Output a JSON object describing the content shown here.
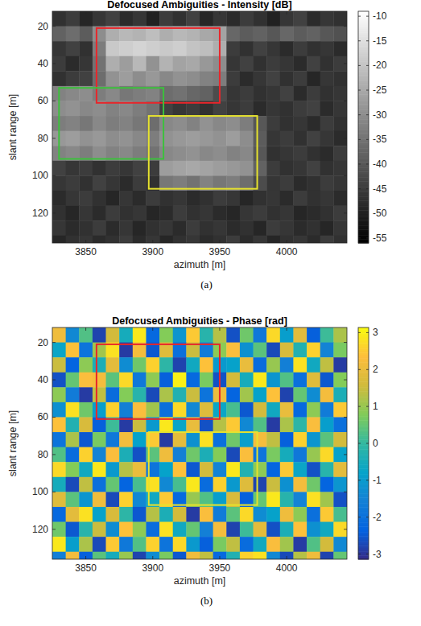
{
  "chart_data": [
    {
      "type": "heatmap",
      "title": "Defocused Ambiguities - Intensity [dB]",
      "caption": "(a)",
      "xlabel": "azimuth [m]",
      "ylabel": "slant range [m]",
      "color": "gray",
      "xlim": [
        3825,
        4045
      ],
      "ylim": [
        12,
        136
      ],
      "xticks": [
        3850,
        3900,
        3950,
        4000
      ],
      "yticks": [
        20,
        40,
        60,
        80,
        100,
        120
      ],
      "x": [
        3830,
        3840,
        3850,
        3860,
        3870,
        3880,
        3890,
        3900,
        3910,
        3920,
        3930,
        3940,
        3950,
        3960,
        3970,
        3980,
        3990,
        4000,
        4010,
        4020,
        4030,
        4040
      ],
      "y": [
        16,
        24,
        32,
        40,
        48,
        56,
        64,
        72,
        80,
        88,
        96,
        104,
        112,
        120,
        128,
        136
      ],
      "cells": [
        [
          -47,
          -45,
          -49,
          -46,
          -44,
          -48,
          -46,
          -50,
          -45,
          -47,
          -44,
          -49,
          -46,
          -48,
          -45,
          -47,
          -50,
          -46,
          -44,
          -48,
          -46,
          -47
        ],
        [
          -38,
          -36,
          -39,
          -30,
          -24,
          -22,
          -23,
          -21,
          -24,
          -22,
          -23,
          -25,
          -26,
          -37,
          -39,
          -38,
          -40,
          -37,
          -39,
          -38,
          -40,
          -41
        ],
        [
          -46,
          -44,
          -47,
          -33,
          -19,
          -18,
          -17,
          -18,
          -19,
          -18,
          -20,
          -21,
          -24,
          -45,
          -47,
          -44,
          -46,
          -48,
          -45,
          -47,
          -46,
          -48
        ],
        [
          -45,
          -48,
          -46,
          -35,
          -24,
          -27,
          -22,
          -29,
          -23,
          -26,
          -25,
          -28,
          -30,
          -46,
          -44,
          -47,
          -45,
          -46,
          -48,
          -44,
          -47,
          -45
        ],
        [
          -47,
          -45,
          -44,
          -36,
          -29,
          -27,
          -30,
          -28,
          -31,
          -29,
          -30,
          -32,
          -33,
          -45,
          -48,
          -46,
          -44,
          -47,
          -45,
          -49,
          -46,
          -47
        ],
        [
          -32,
          -31,
          -30,
          -33,
          -31,
          -34,
          -33,
          -32,
          -36,
          -35,
          -37,
          -38,
          -42,
          -46,
          -45,
          -47,
          -46,
          -44,
          -48,
          -45,
          -47,
          -46
        ],
        [
          -30,
          -29,
          -31,
          -30,
          -32,
          -31,
          -33,
          -35,
          -44,
          -46,
          -45,
          -47,
          -44,
          -46,
          -45,
          -48,
          -46,
          -47,
          -45,
          -44,
          -48,
          -46
        ],
        [
          -33,
          -32,
          -34,
          -31,
          -33,
          -32,
          -34,
          -36,
          -31,
          -30,
          -32,
          -29,
          -31,
          -30,
          -33,
          -40,
          -45,
          -47,
          -46,
          -48,
          -45,
          -47
        ],
        [
          -28,
          -27,
          -29,
          -28,
          -30,
          -29,
          -31,
          -33,
          -29,
          -28,
          -27,
          -28,
          -29,
          -27,
          -30,
          -39,
          -46,
          -45,
          -47,
          -44,
          -46,
          -48
        ],
        [
          -32,
          -31,
          -33,
          -30,
          -32,
          -31,
          -33,
          -35,
          -31,
          -30,
          -29,
          -31,
          -30,
          -32,
          -31,
          -40,
          -47,
          -46,
          -45,
          -47,
          -48,
          -45
        ],
        [
          -44,
          -46,
          -45,
          -47,
          -45,
          -46,
          -44,
          -45,
          -27,
          -26,
          -25,
          -26,
          -27,
          -28,
          -29,
          -38,
          -45,
          -47,
          -46,
          -44,
          -47,
          -46
        ],
        [
          -46,
          -45,
          -47,
          -44,
          -46,
          -48,
          -45,
          -47,
          -34,
          -33,
          -35,
          -32,
          -34,
          -33,
          -36,
          -42,
          -46,
          -45,
          -48,
          -47,
          -45,
          -46
        ],
        [
          -48,
          -46,
          -45,
          -47,
          -49,
          -46,
          -48,
          -45,
          -47,
          -46,
          -48,
          -47,
          -45,
          -46,
          -49,
          -47,
          -46,
          -48,
          -45,
          -47,
          -46,
          -48
        ],
        [
          -47,
          -49,
          -46,
          -48,
          -45,
          -47,
          -46,
          -49,
          -48,
          -45,
          -47,
          -46,
          -48,
          -49,
          -46,
          -45,
          -47,
          -46,
          -49,
          -48,
          -47,
          -45
        ],
        [
          -46,
          -48,
          -47,
          -45,
          -48,
          -46,
          -49,
          -47,
          -46,
          -48,
          -45,
          -47,
          -46,
          -48,
          -47,
          -49,
          -45,
          -46,
          -48,
          -47,
          -49,
          -46
        ],
        [
          -49,
          -47,
          -46,
          -48,
          -47,
          -45,
          -48,
          -46,
          -49,
          -47,
          -46,
          -48,
          -47,
          -45,
          -48,
          -46,
          -49,
          -47,
          -46,
          -48,
          -45,
          -47
        ]
      ],
      "colorbar": {
        "lim": [
          -56,
          -9
        ],
        "ticks": [
          -10,
          -15,
          -20,
          -25,
          -30,
          -35,
          -40,
          -45,
          -50,
          -55
        ]
      },
      "boxes": [
        {
          "color": "#e8262b",
          "x": [
            3858,
            3950
          ],
          "y": [
            21,
            61
          ]
        },
        {
          "color": "#3cc03c",
          "x": [
            3830,
            3908
          ],
          "y": [
            53,
            91
          ]
        },
        {
          "color": "#e6e22e",
          "x": [
            3897,
            3978
          ],
          "y": [
            68,
            107
          ]
        }
      ]
    },
    {
      "type": "heatmap",
      "title": "Defocused Ambiguities - Phase [rad]",
      "caption": "(b)",
      "xlabel": "azimuth [m]",
      "ylabel": "slant range [m]",
      "color": "parula",
      "xlim": [
        3825,
        4045
      ],
      "ylim": [
        12,
        136
      ],
      "xticks": [
        3850,
        3900,
        3950,
        4000
      ],
      "yticks": [
        20,
        40,
        60,
        80,
        100,
        120
      ],
      "x": [
        3830,
        3840,
        3850,
        3860,
        3870,
        3880,
        3890,
        3900,
        3910,
        3920,
        3930,
        3940,
        3950,
        3960,
        3970,
        3980,
        3990,
        4000,
        4010,
        4020,
        4030,
        4040
      ],
      "y": [
        16,
        24,
        32,
        40,
        48,
        56,
        64,
        72,
        80,
        88,
        96,
        104,
        112,
        120,
        128,
        136
      ],
      "cells": [
        [
          2.1,
          -1.4,
          0.3,
          -2.8,
          1.6,
          -0.5,
          2.9,
          -2.2,
          0.8,
          -1.1,
          2.5,
          -0.2,
          1.3,
          -2.6,
          0.6,
          -1.8,
          2.7,
          -0.9,
          1.9,
          -2.4,
          0.1,
          1.2
        ],
        [
          -0.7,
          2.4,
          -1.9,
          1.1,
          2.8,
          -2.9,
          2.2,
          -2.5,
          1.8,
          -2.0,
          1.5,
          -1.7,
          0.9,
          2.3,
          -1.2,
          0.4,
          -2.7,
          1.7,
          -0.3,
          2.6,
          -1.5,
          0.7
        ],
        [
          1.5,
          -2.3,
          0.9,
          -0.4,
          1.9,
          -1.3,
          0.6,
          2.6,
          -0.1,
          -2.8,
          -0.6,
          2.4,
          -1.0,
          -0.8,
          2.0,
          -2.1,
          1.0,
          -1.6,
          2.8,
          -0.6,
          1.4,
          -2.9
        ],
        [
          -2.6,
          0.5,
          2.3,
          2.2,
          0.4,
          2.7,
          -1.8,
          0.9,
          -2.4,
          3.0,
          -2.2,
          0.7,
          -2.6,
          1.6,
          -0.5,
          2.9,
          -1.1,
          0.3,
          -2.0,
          1.8,
          -2.5,
          0.8
        ],
        [
          0.9,
          -1.7,
          -2.9,
          1.4,
          -2.1,
          0.8,
          -0.2,
          -2.7,
          1.2,
          -0.3,
          1.5,
          -1.9,
          2.1,
          -2.3,
          1.1,
          -0.8,
          2.4,
          -2.8,
          0.5,
          -1.3,
          2.2,
          -0.4
        ],
        [
          -1.2,
          2.8,
          0.6,
          -0.9,
          2.6,
          -1.6,
          2.3,
          1.1,
          -2.0,
          2.7,
          -1.4,
          1.8,
          -0.7,
          0.2,
          -2.5,
          1.6,
          -0.6,
          2.0,
          -2.2,
          0.9,
          -1.7,
          2.5
        ],
        [
          2.4,
          -0.3,
          1.7,
          -2.4,
          0.1,
          -2.9,
          1.5,
          -1.0,
          2.9,
          -0.7,
          2.0,
          -2.6,
          1.3,
          2.5,
          -1.4,
          0.3,
          -2.9,
          1.2,
          -0.1,
          2.3,
          -0.9,
          -2.0
        ],
        [
          -1.9,
          1.2,
          -2.5,
          0.7,
          -1.8,
          2.2,
          -0.8,
          2.5,
          -2.9,
          1.9,
          -1.2,
          2.8,
          -2.0,
          0.6,
          -0.9,
          2.2,
          1.4,
          -2.4,
          2.6,
          -1.1,
          0.4,
          1.6
        ],
        [
          0.3,
          -2.1,
          2.6,
          -1.5,
          2.3,
          -0.4,
          -2.6,
          0.4,
          2.1,
          -1.6,
          0.6,
          -0.4,
          0.8,
          -2.7,
          2.3,
          -1.9,
          0.7,
          -0.5,
          -1.8,
          1.0,
          2.7,
          -0.8
        ],
        [
          2.7,
          0.8,
          -0.6,
          2.9,
          -1.0,
          1.3,
          2.0,
          -1.9,
          -0.8,
          2.4,
          -2.5,
          1.6,
          -1.5,
          2.9,
          -0.3,
          0.9,
          -2.3,
          2.5,
          -0.7,
          -2.6,
          -0.2,
          1.9
        ],
        [
          -0.5,
          -2.7,
          1.4,
          -2.0,
          0.5,
          -2.3,
          0.2,
          2.8,
          -1.4,
          0.2,
          2.9,
          -2.1,
          2.6,
          -1.0,
          1.8,
          -2.8,
          1.5,
          -1.2,
          2.2,
          0.6,
          -2.3,
          -1.1
        ],
        [
          1.8,
          0.4,
          -1.1,
          2.1,
          -2.7,
          2.6,
          -1.4,
          -0.6,
          2.5,
          -2.2,
          1.0,
          0.3,
          -0.9,
          1.7,
          -2.4,
          0.5,
          2.9,
          -0.2,
          -1.5,
          2.8,
          1.1,
          -2.6
        ],
        [
          -2.2,
          1.9,
          2.8,
          -0.8,
          1.7,
          -0.1,
          -2.5,
          1.3,
          -0.4,
          1.6,
          -2.9,
          2.3,
          -1.7,
          0.4,
          2.7,
          -1.3,
          -0.8,
          2.1,
          0.9,
          -2.0,
          2.5,
          0.2
        ],
        [
          0.6,
          -2.5,
          -0.2,
          1.5,
          -1.3,
          2.4,
          0.9,
          -2.1,
          2.8,
          -0.6,
          0.5,
          -1.6,
          2.2,
          -2.8,
          0.1,
          1.9,
          -2.6,
          -0.4,
          2.4,
          -1.2,
          -0.6,
          2.7
        ],
        [
          2.9,
          -0.9,
          1.2,
          -2.7,
          2.5,
          -1.8,
          0.3,
          2.6,
          -1.9,
          2.7,
          -1.0,
          -2.4,
          0.7,
          1.4,
          -2.1,
          -0.6,
          2.3,
          1.1,
          -2.9,
          0.3,
          1.6,
          -1.4
        ],
        [
          -1.6,
          2.2,
          -2.4,
          0.4,
          -0.5,
          1.0,
          -2.8,
          -1.3,
          0.7,
          -2.5,
          2.1,
          1.4,
          -2.2,
          -0.3,
          2.6,
          2.8,
          -1.4,
          -2.7,
          1.3,
          2.1,
          -2.8,
          0.5
        ]
      ],
      "colorbar": {
        "lim": [
          -3.14,
          3.14
        ],
        "ticks": [
          -3,
          -2,
          -1,
          0,
          1,
          2,
          3
        ]
      },
      "boxes": [
        {
          "color": "#e8262b",
          "x": [
            3858,
            3950
          ],
          "y": [
            21,
            61
          ]
        },
        {
          "color": "#e6e22e",
          "x": [
            3897,
            3978
          ],
          "y": [
            68,
            107
          ]
        }
      ]
    }
  ]
}
